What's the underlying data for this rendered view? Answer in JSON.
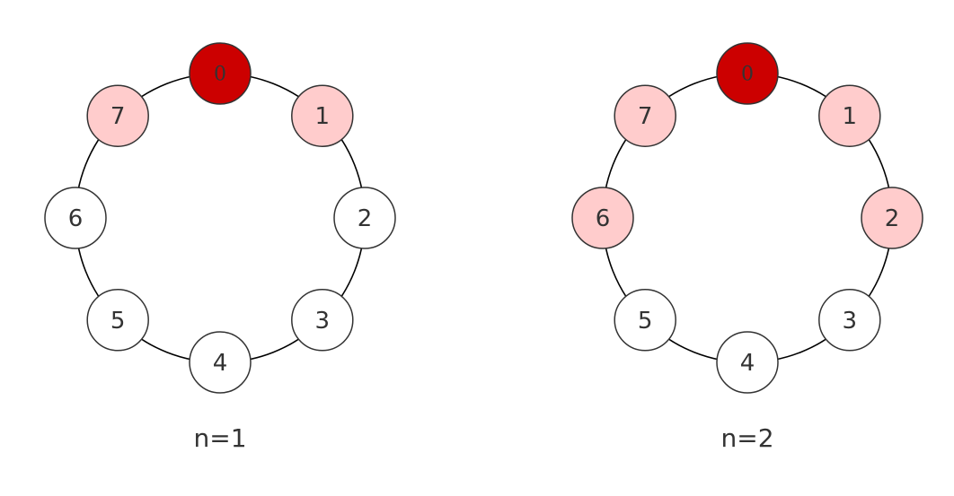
{
  "colors": {
    "origin_fill": "#cc0000",
    "neighbor_fill": "#ffcccc",
    "default_fill": "#ffffff",
    "stroke": "#333333",
    "ring": "#000000"
  },
  "diagrams": [
    {
      "caption": "n=1",
      "nodes": [
        {
          "label": "0",
          "state": "origin"
        },
        {
          "label": "1",
          "state": "neighbor"
        },
        {
          "label": "2",
          "state": "default"
        },
        {
          "label": "3",
          "state": "default"
        },
        {
          "label": "4",
          "state": "default"
        },
        {
          "label": "5",
          "state": "default"
        },
        {
          "label": "6",
          "state": "default"
        },
        {
          "label": "7",
          "state": "neighbor"
        }
      ]
    },
    {
      "caption": "n=2",
      "nodes": [
        {
          "label": "0",
          "state": "origin"
        },
        {
          "label": "1",
          "state": "neighbor"
        },
        {
          "label": "2",
          "state": "neighbor"
        },
        {
          "label": "3",
          "state": "default"
        },
        {
          "label": "4",
          "state": "default"
        },
        {
          "label": "5",
          "state": "default"
        },
        {
          "label": "6",
          "state": "neighbor"
        },
        {
          "label": "7",
          "state": "neighbor"
        }
      ]
    }
  ]
}
